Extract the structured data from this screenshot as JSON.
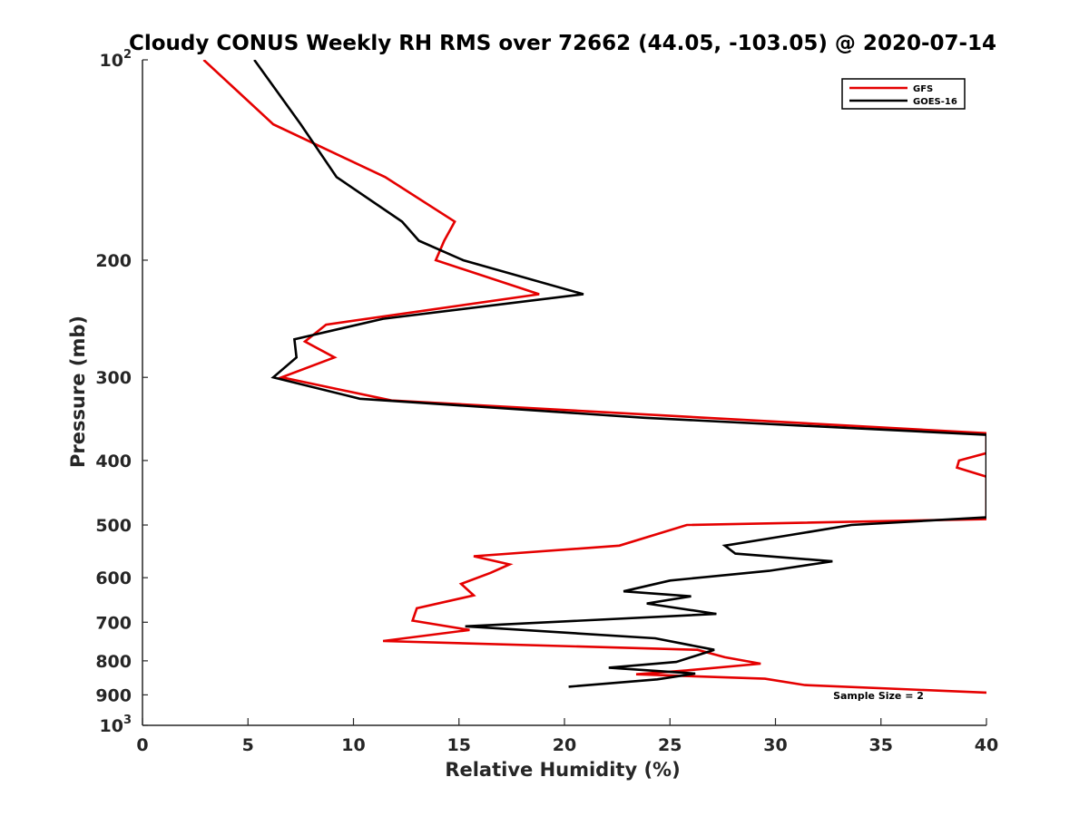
{
  "chart_data": {
    "type": "line",
    "title": "Cloudy CONUS Weekly RH RMS over 72662 (44.05, -103.05) @ 2020-07-14",
    "xlabel": "Relative Humidity (%)",
    "ylabel": "Pressure (mb)",
    "xlim": [
      0,
      40
    ],
    "ylim": [
      100,
      1000
    ],
    "yscale": "log",
    "y_reversed": true,
    "xticks": [
      "0",
      "5",
      "10",
      "15",
      "20",
      "25",
      "30",
      "35",
      "40"
    ],
    "yticks": [
      {
        "value": 100,
        "base": "10",
        "exp": "2"
      },
      {
        "value": 200,
        "label": "200"
      },
      {
        "value": 300,
        "label": "300"
      },
      {
        "value": 400,
        "label": "400"
      },
      {
        "value": 500,
        "label": "500"
      },
      {
        "value": 600,
        "label": "600"
      },
      {
        "value": 700,
        "label": "700"
      },
      {
        "value": 800,
        "label": "800"
      },
      {
        "value": 900,
        "label": "900"
      },
      {
        "value": 1000,
        "base": "10",
        "exp": "3"
      }
    ],
    "grid": false,
    "legend_position": "top-right",
    "annotation": "Sample Size = 2",
    "series": [
      {
        "name": "GFS",
        "color": "#e50000",
        "points": [
          [
            2.9,
            100
          ],
          [
            6.2,
            125
          ],
          [
            11.5,
            150
          ],
          [
            14.8,
            175
          ],
          [
            14.3,
            187
          ],
          [
            13.9,
            200
          ],
          [
            18.8,
            225
          ],
          [
            8.7,
            250
          ],
          [
            7.7,
            265
          ],
          [
            9.1,
            280
          ],
          [
            6.6,
            300
          ],
          [
            11.8,
            325
          ],
          [
            40.0,
            364
          ],
          [
            40.0,
            390
          ],
          [
            38.7,
            400
          ],
          [
            38.6,
            410
          ],
          [
            40.0,
            423
          ],
          [
            40.0,
            490
          ],
          [
            25.8,
            500
          ],
          [
            22.6,
            537
          ],
          [
            15.7,
            557
          ],
          [
            17.4,
            573
          ],
          [
            16.5,
            590
          ],
          [
            15.1,
            613
          ],
          [
            15.7,
            638
          ],
          [
            13.0,
            667
          ],
          [
            12.8,
            696
          ],
          [
            15.5,
            719
          ],
          [
            11.4,
            747
          ],
          [
            26.3,
            770
          ],
          [
            27.6,
            790
          ],
          [
            29.3,
            808
          ],
          [
            25.8,
            827
          ],
          [
            23.4,
            838
          ],
          [
            29.5,
            851
          ],
          [
            31.4,
            870
          ],
          [
            40.0,
            893
          ]
        ]
      },
      {
        "name": "GOES-16",
        "color": "#000000",
        "points": [
          [
            5.3,
            100
          ],
          [
            7.5,
            125
          ],
          [
            9.2,
            150
          ],
          [
            12.3,
            175
          ],
          [
            13.1,
            187
          ],
          [
            15.2,
            200
          ],
          [
            20.9,
            225
          ],
          [
            11.4,
            245
          ],
          [
            7.2,
            263
          ],
          [
            7.3,
            280
          ],
          [
            6.2,
            300
          ],
          [
            10.3,
            323
          ],
          [
            23.8,
            345
          ],
          [
            40.0,
            366
          ],
          [
            40.0,
            487
          ],
          [
            33.6,
            500
          ],
          [
            30.5,
            519
          ],
          [
            27.6,
            537
          ],
          [
            28.1,
            552
          ],
          [
            32.7,
            567
          ],
          [
            29.7,
            586
          ],
          [
            25.0,
            606
          ],
          [
            22.8,
            629
          ],
          [
            26.0,
            640
          ],
          [
            23.9,
            656
          ],
          [
            27.2,
            680
          ],
          [
            15.3,
            710
          ],
          [
            24.3,
            740
          ],
          [
            27.1,
            770
          ],
          [
            26.0,
            790
          ],
          [
            25.3,
            803
          ],
          [
            22.1,
            819
          ],
          [
            26.2,
            836
          ],
          [
            24.4,
            853
          ],
          [
            20.2,
            875
          ]
        ]
      }
    ]
  }
}
